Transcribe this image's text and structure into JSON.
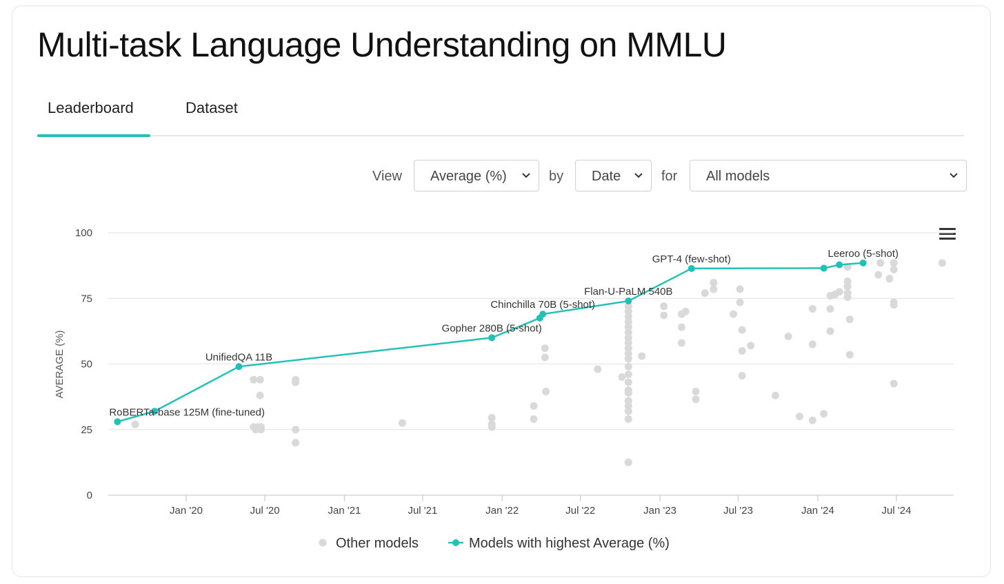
{
  "header": {
    "title": "Multi-task Language Understanding on MMLU"
  },
  "tabs": [
    {
      "label": "Leaderboard"
    },
    {
      "label": "Dataset"
    }
  ],
  "controls": {
    "view_label": "View",
    "view_value": "Average (%)",
    "by_label": "by",
    "by_value": "Date",
    "for_label": "for",
    "for_value": "All models"
  },
  "chart_data": {
    "type": "scatter",
    "ylabel": "AVERAGE (%)",
    "xlabel": "",
    "ylim": [
      0,
      100
    ],
    "yticks": [
      0,
      25,
      50,
      75,
      100
    ],
    "xticks": [
      {
        "label": "Jan '20",
        "date": "2020-01-01"
      },
      {
        "label": "Jul '20",
        "date": "2020-07-01"
      },
      {
        "label": "Jan '21",
        "date": "2021-01-01"
      },
      {
        "label": "Jul '21",
        "date": "2021-07-01"
      },
      {
        "label": "Jan '22",
        "date": "2022-01-01"
      },
      {
        "label": "Jul '22",
        "date": "2022-07-01"
      },
      {
        "label": "Jan '23",
        "date": "2023-01-01"
      },
      {
        "label": "Jul '23",
        "date": "2023-07-01"
      },
      {
        "label": "Jan '24",
        "date": "2024-01-01"
      },
      {
        "label": "Jul '24",
        "date": "2024-07-01"
      }
    ],
    "grid": true,
    "legend": [
      {
        "name": "Other models",
        "color": "#d9d9d9"
      },
      {
        "name": "Models with highest Average (%)",
        "color": "#21c1b7"
      }
    ],
    "series": [
      {
        "name": "Models with highest Average (%)",
        "color": "#21c1b7",
        "points": [
          {
            "x": "2019-07-26",
            "y": 28.0,
            "label": "RoBERTa-base 125M (fine-tuned)"
          },
          {
            "x": "2019-10-20",
            "y": 32.0,
            "label": ""
          },
          {
            "x": "2020-05-02",
            "y": 49.0,
            "label": "UnifiedQA 11B"
          },
          {
            "x": "2021-12-08",
            "y": 60.0,
            "label": "Gopher 280B (5-shot)"
          },
          {
            "x": "2022-03-29",
            "y": 67.5,
            "label": ""
          },
          {
            "x": "2022-04-05",
            "y": 69.0,
            "label": "Chinchilla 70B (5-shot)"
          },
          {
            "x": "2022-10-20",
            "y": 74.0,
            "label": "Flan-U-PaLM 540B"
          },
          {
            "x": "2023-03-15",
            "y": 86.4,
            "label": "GPT-4 (few-shot)"
          },
          {
            "x": "2024-01-15",
            "y": 86.5,
            "label": ""
          },
          {
            "x": "2024-02-20",
            "y": 87.8,
            "label": ""
          },
          {
            "x": "2024-04-15",
            "y": 88.5,
            "label": "Leeroo (5-shot)"
          }
        ]
      },
      {
        "name": "Other models",
        "color": "#d9d9d9",
        "points": [
          {
            "x": "2019-09-05",
            "y": 27
          },
          {
            "x": "2020-06-05",
            "y": 44
          },
          {
            "x": "2020-06-20",
            "y": 44
          },
          {
            "x": "2020-06-20",
            "y": 38
          },
          {
            "x": "2020-06-05",
            "y": 26
          },
          {
            "x": "2020-06-15",
            "y": 26
          },
          {
            "x": "2020-06-22",
            "y": 26
          },
          {
            "x": "2020-06-10",
            "y": 25
          },
          {
            "x": "2020-06-22",
            "y": 25
          },
          {
            "x": "2020-09-10",
            "y": 44
          },
          {
            "x": "2020-09-10",
            "y": 43
          },
          {
            "x": "2020-09-10",
            "y": 25
          },
          {
            "x": "2020-09-10",
            "y": 20
          },
          {
            "x": "2021-05-15",
            "y": 27.5
          },
          {
            "x": "2021-12-08",
            "y": 29.5
          },
          {
            "x": "2021-12-08",
            "y": 27
          },
          {
            "x": "2021-12-08",
            "y": 26
          },
          {
            "x": "2022-04-10",
            "y": 56
          },
          {
            "x": "2022-04-10",
            "y": 52.5
          },
          {
            "x": "2022-04-12",
            "y": 39.5
          },
          {
            "x": "2022-03-15",
            "y": 34
          },
          {
            "x": "2022-03-15",
            "y": 29
          },
          {
            "x": "2022-08-10",
            "y": 48
          },
          {
            "x": "2022-10-05",
            "y": 45
          },
          {
            "x": "2022-10-20",
            "y": 72
          },
          {
            "x": "2022-10-20",
            "y": 70
          },
          {
            "x": "2022-10-20",
            "y": 68
          },
          {
            "x": "2022-10-20",
            "y": 66
          },
          {
            "x": "2022-10-20",
            "y": 64
          },
          {
            "x": "2022-10-20",
            "y": 62
          },
          {
            "x": "2022-10-20",
            "y": 60
          },
          {
            "x": "2022-10-20",
            "y": 58
          },
          {
            "x": "2022-10-20",
            "y": 56
          },
          {
            "x": "2022-10-20",
            "y": 54
          },
          {
            "x": "2022-10-20",
            "y": 52
          },
          {
            "x": "2022-10-20",
            "y": 49
          },
          {
            "x": "2022-10-20",
            "y": 46
          },
          {
            "x": "2022-10-20",
            "y": 43
          },
          {
            "x": "2022-10-20",
            "y": 40
          },
          {
            "x": "2022-10-20",
            "y": 39
          },
          {
            "x": "2022-10-20",
            "y": 36
          },
          {
            "x": "2022-10-20",
            "y": 34
          },
          {
            "x": "2022-10-20",
            "y": 32
          },
          {
            "x": "2022-10-20",
            "y": 29
          },
          {
            "x": "2022-10-20",
            "y": 12.5
          },
          {
            "x": "2022-11-20",
            "y": 53
          },
          {
            "x": "2023-01-10",
            "y": 72
          },
          {
            "x": "2023-01-10",
            "y": 68.5
          },
          {
            "x": "2023-02-20",
            "y": 69
          },
          {
            "x": "2023-03-01",
            "y": 70
          },
          {
            "x": "2023-02-20",
            "y": 64
          },
          {
            "x": "2023-02-20",
            "y": 58
          },
          {
            "x": "2023-03-25",
            "y": 39.5
          },
          {
            "x": "2023-03-25",
            "y": 36.5
          },
          {
            "x": "2023-04-15",
            "y": 77
          },
          {
            "x": "2023-05-05",
            "y": 81
          },
          {
            "x": "2023-05-05",
            "y": 78.5
          },
          {
            "x": "2023-06-20",
            "y": 69
          },
          {
            "x": "2023-07-05",
            "y": 78.5
          },
          {
            "x": "2023-07-05",
            "y": 73.5
          },
          {
            "x": "2023-07-10",
            "y": 63
          },
          {
            "x": "2023-07-10",
            "y": 55
          },
          {
            "x": "2023-07-30",
            "y": 57
          },
          {
            "x": "2023-07-10",
            "y": 45.5
          },
          {
            "x": "2023-09-25",
            "y": 38
          },
          {
            "x": "2023-10-25",
            "y": 60.5
          },
          {
            "x": "2023-11-20",
            "y": 30
          },
          {
            "x": "2023-12-20",
            "y": 71
          },
          {
            "x": "2023-12-20",
            "y": 57.5
          },
          {
            "x": "2023-12-20",
            "y": 28.5
          },
          {
            "x": "2024-01-15",
            "y": 31
          },
          {
            "x": "2024-01-30",
            "y": 76
          },
          {
            "x": "2024-01-30",
            "y": 71
          },
          {
            "x": "2024-01-30",
            "y": 62.5
          },
          {
            "x": "2024-02-10",
            "y": 76.5
          },
          {
            "x": "2024-02-20",
            "y": 77.5
          },
          {
            "x": "2024-03-10",
            "y": 87
          },
          {
            "x": "2024-03-10",
            "y": 81.5
          },
          {
            "x": "2024-03-10",
            "y": 79.5
          },
          {
            "x": "2024-03-10",
            "y": 77
          },
          {
            "x": "2024-03-10",
            "y": 75.5
          },
          {
            "x": "2024-03-15",
            "y": 67
          },
          {
            "x": "2024-03-15",
            "y": 53.5
          },
          {
            "x": "2024-05-25",
            "y": 88.5
          },
          {
            "x": "2024-05-20",
            "y": 84
          },
          {
            "x": "2024-06-15",
            "y": 82.5
          },
          {
            "x": "2024-06-25",
            "y": 88.5
          },
          {
            "x": "2024-06-25",
            "y": 86
          },
          {
            "x": "2024-06-25",
            "y": 73.5
          },
          {
            "x": "2024-06-25",
            "y": 72.5
          },
          {
            "x": "2024-06-25",
            "y": 42.5
          },
          {
            "x": "2024-10-15",
            "y": 88.5
          }
        ]
      }
    ]
  }
}
